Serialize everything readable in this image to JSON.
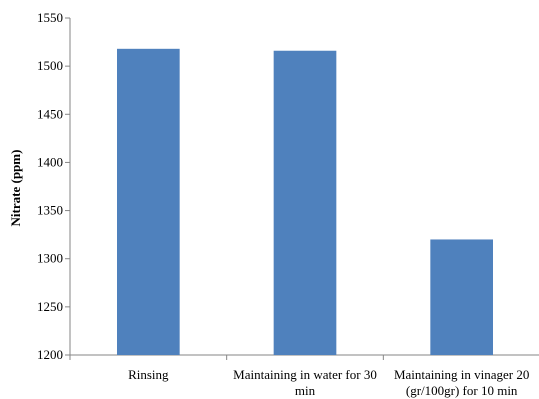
{
  "chart_data": {
    "type": "bar",
    "title": "",
    "xlabel": "",
    "ylabel": "Nitrate (ppm)",
    "ylim": [
      1200,
      1550
    ],
    "yticks": [
      1200,
      1250,
      1300,
      1350,
      1400,
      1450,
      1500,
      1550
    ],
    "grid": false,
    "legend": "none",
    "bar_color": "#4f81bd",
    "categories": [
      [
        "Rinsing"
      ],
      [
        "Maintaining in water for 30",
        "min"
      ],
      [
        "Maintaining in vinager 20",
        "(gr/100gr) for 10 min"
      ]
    ],
    "values": [
      1518,
      1516,
      1320
    ]
  }
}
